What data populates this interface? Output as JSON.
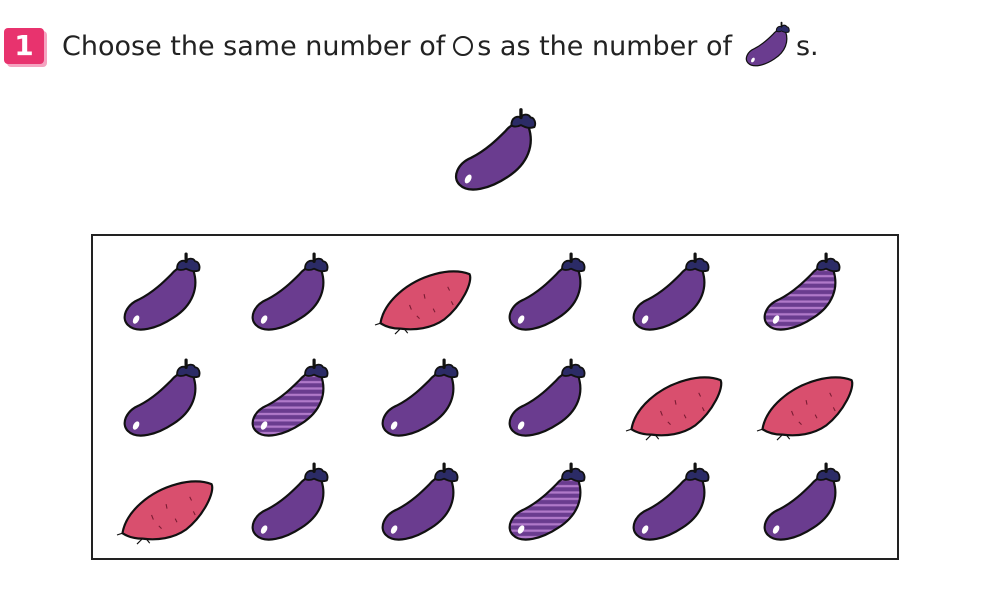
{
  "question": {
    "number": "1",
    "text_before": "Choose the same number of",
    "text_middle": "s as the number of",
    "text_after": "s.",
    "circle_icon": "circle-outline-icon",
    "eggplant_icon": "eggplant-icon"
  },
  "colors": {
    "badge": "#e8336e",
    "eggplant": "#6a3c8f",
    "eggplant_stem": "#2b2b66",
    "sweet_potato": "#d94f6e",
    "stripe": "#b079c9"
  },
  "grid": {
    "rows": [
      [
        "eggplant",
        "eggplant",
        "sweet-potato",
        "eggplant",
        "eggplant",
        "striped-eggplant"
      ],
      [
        "eggplant",
        "striped-eggplant",
        "eggplant",
        "eggplant",
        "sweet-potato",
        "sweet-potato"
      ],
      [
        "sweet-potato",
        "eggplant",
        "eggplant",
        "striped-eggplant",
        "eggplant",
        "eggplant"
      ]
    ]
  }
}
